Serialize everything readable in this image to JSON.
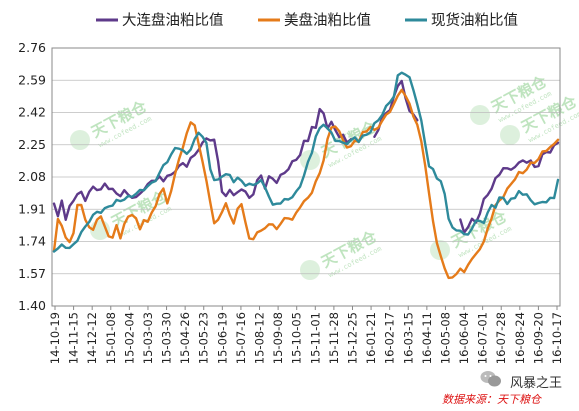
{
  "chart_data": {
    "type": "line",
    "title": "",
    "xlabel": "",
    "ylabel": "",
    "ylim": [
      1.4,
      2.76
    ],
    "yticks": [
      "2.76",
      "2.59",
      "2.42",
      "2.25",
      "2.08",
      "1.91",
      "1.74",
      "1.57",
      "1.40"
    ],
    "xticks": [
      "14-10-19",
      "14-11-15",
      "14-12-12",
      "15-01-08",
      "15-02-04",
      "15-03-03",
      "15-03-30",
      "15-04-26",
      "15-05-23",
      "15-06-19",
      "15-07-16",
      "15-08-12",
      "15-09-08",
      "15-10-05",
      "15-11-01",
      "15-11-28",
      "15-12-25",
      "16-01-21",
      "16-02-17",
      "16-03-15",
      "16-04-11",
      "16-05-08",
      "16-06-04",
      "16-07-01",
      "16-07-28",
      "16-08-24",
      "16-09-20",
      "16-10-17"
    ],
    "grid": true,
    "legend_position": "top",
    "series": [
      {
        "name": "大连盘油粕比值",
        "color": "#5e3a8a",
        "values": [
          1.94,
          1.87,
          1.97,
          1.86,
          1.93,
          1.97,
          1.99,
          2.0,
          1.96,
          1.99,
          2.02,
          2.01,
          2.0,
          2.04,
          2.02,
          2.01,
          2.0,
          1.99,
          2.01,
          2.0,
          1.98,
          1.97,
          2.0,
          2.01,
          2.03,
          2.06,
          2.05,
          2.07,
          2.06,
          2.08,
          2.09,
          2.12,
          2.14,
          2.16,
          2.15,
          2.18,
          2.2,
          2.23,
          2.25,
          2.28,
          2.27,
          2.26,
          2.16,
          2.0,
          1.97,
          2.02,
          1.99,
          2.0,
          2.03,
          2.01,
          1.97,
          2.0,
          2.06,
          2.08,
          2.02,
          2.07,
          2.06,
          2.05,
          2.08,
          2.1,
          2.13,
          2.16,
          2.18,
          2.21,
          2.27,
          2.28,
          2.35,
          2.33,
          2.44,
          2.41,
          2.32,
          2.37,
          2.32,
          2.28,
          2.31,
          2.26,
          2.28,
          null,
          null,
          null,
          null,
          null,
          2.29,
          2.33,
          2.38,
          2.41,
          2.43,
          2.49,
          2.56,
          2.59,
          2.49,
          2.44,
          2.42,
          2.38,
          null,
          null,
          null,
          null,
          null,
          null,
          null,
          null,
          null,
          null,
          1.85,
          1.79,
          1.83,
          1.86,
          1.85,
          1.9,
          1.96,
          1.99,
          2.02,
          2.06,
          2.09,
          2.12,
          2.11,
          2.12,
          2.13,
          2.15,
          2.18,
          2.16,
          2.17,
          2.15,
          2.14,
          2.2,
          2.22,
          2.2,
          2.24,
          2.26
        ]
      },
      {
        "name": "美盘油粕比值",
        "color": "#e57b1a",
        "values": [
          1.7,
          1.85,
          1.82,
          1.76,
          1.72,
          1.78,
          1.93,
          1.92,
          1.86,
          1.82,
          1.8,
          1.87,
          1.88,
          1.82,
          1.78,
          1.76,
          1.82,
          1.76,
          1.82,
          1.86,
          1.88,
          1.85,
          1.8,
          1.86,
          1.84,
          1.9,
          1.94,
          1.99,
          2.03,
          1.95,
          2.0,
          2.1,
          2.17,
          2.22,
          2.31,
          2.36,
          2.34,
          2.26,
          2.16,
          2.06,
          1.96,
          1.84,
          1.86,
          1.91,
          1.94,
          1.88,
          1.84,
          1.9,
          1.93,
          1.84,
          1.74,
          1.75,
          1.79,
          1.79,
          1.82,
          1.84,
          1.83,
          1.82,
          1.84,
          1.86,
          1.87,
          1.85,
          1.88,
          1.92,
          1.94,
          1.96,
          2.0,
          2.05,
          2.1,
          2.18,
          2.28,
          2.35,
          2.36,
          2.32,
          2.28,
          2.24,
          2.23,
          2.27,
          2.26,
          2.3,
          2.32,
          2.34,
          2.32,
          2.35,
          2.38,
          2.41,
          2.44,
          2.47,
          2.51,
          2.55,
          2.5,
          2.46,
          2.4,
          2.34,
          2.26,
          2.14,
          1.98,
          1.85,
          1.74,
          1.66,
          1.61,
          1.56,
          1.55,
          1.58,
          1.6,
          1.57,
          1.62,
          1.64,
          1.66,
          1.7,
          1.73,
          1.8,
          1.87,
          1.93,
          1.96,
          1.99,
          2.02,
          2.05,
          2.08,
          2.1,
          2.1,
          2.12,
          2.14,
          2.15,
          2.17,
          2.2,
          2.22,
          2.24,
          2.25,
          2.29
        ]
      },
      {
        "name": "现货油粕比值",
        "color": "#2e8a9b",
        "values": [
          1.69,
          1.7,
          1.72,
          1.72,
          1.71,
          1.73,
          1.76,
          1.79,
          1.82,
          1.85,
          1.87,
          1.89,
          1.89,
          1.9,
          1.92,
          1.93,
          1.95,
          1.96,
          1.97,
          1.98,
          1.99,
          2.0,
          2.01,
          2.02,
          2.03,
          2.04,
          2.06,
          2.09,
          2.13,
          2.16,
          2.19,
          2.23,
          2.24,
          2.22,
          2.21,
          2.24,
          2.28,
          2.32,
          2.3,
          2.25,
          2.12,
          2.06,
          2.05,
          2.08,
          2.09,
          2.08,
          2.06,
          2.08,
          2.06,
          2.05,
          2.05,
          2.04,
          2.06,
          2.06,
          2.02,
          1.98,
          1.92,
          1.93,
          1.94,
          1.95,
          1.96,
          1.98,
          2.0,
          2.04,
          2.1,
          2.16,
          2.22,
          2.3,
          2.33,
          2.36,
          2.33,
          2.3,
          2.27,
          2.26,
          2.25,
          2.26,
          2.27,
          2.29,
          2.28,
          2.3,
          2.31,
          2.33,
          2.36,
          2.38,
          2.41,
          2.44,
          2.47,
          2.5,
          2.6,
          2.63,
          2.62,
          2.6,
          2.55,
          2.47,
          2.38,
          2.27,
          2.14,
          2.12,
          2.08,
          2.05,
          1.98,
          1.86,
          1.8,
          1.79,
          1.8,
          1.77,
          1.78,
          1.82,
          1.85,
          1.86,
          1.85,
          1.89,
          1.94,
          1.92,
          1.96,
          1.97,
          1.93,
          1.95,
          1.97,
          2.0,
          1.98,
          2.0,
          1.96,
          1.94,
          1.96,
          1.95,
          1.95,
          1.98,
          1.96,
          2.06
        ]
      }
    ]
  },
  "watermark": {
    "text": "天下粮仓",
    "sub": "www.cofeed.com"
  },
  "source_note": "数据来源：天下粮仓",
  "brand": "风暴之王"
}
